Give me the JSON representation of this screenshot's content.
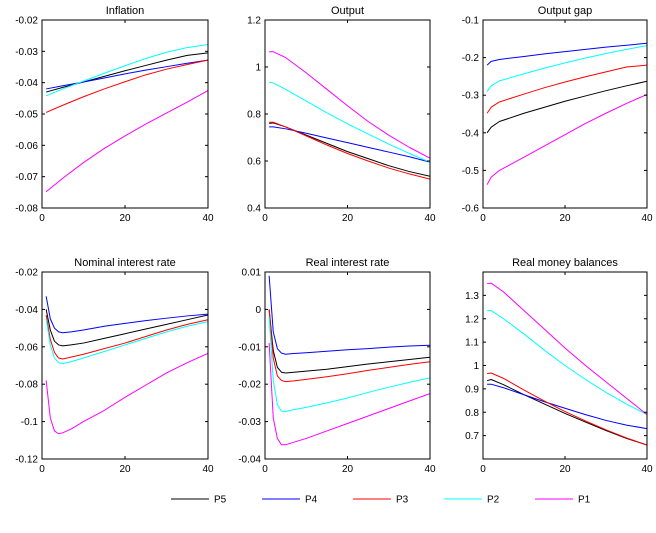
{
  "chart_data": [
    {
      "type": "line",
      "title": "Inflation",
      "xlim": [
        0,
        40
      ],
      "ylim": [
        -0.08,
        -0.02
      ],
      "xticks": [
        0,
        20,
        40
      ],
      "yticks": [
        -0.08,
        -0.07,
        -0.06,
        -0.05,
        -0.04,
        -0.03,
        -0.02
      ],
      "xtick_labels": [
        "0",
        "20",
        "40"
      ],
      "ytick_labels": [
        "-0.08",
        "-0.07",
        "-0.06",
        "-0.05",
        "-0.04",
        "-0.03",
        "-0.02"
      ],
      "x": [
        1,
        5,
        10,
        15,
        20,
        25,
        30,
        35,
        40
      ],
      "series": [
        {
          "name": "P5",
          "color": "#000000",
          "values": [
            -0.043,
            -0.0415,
            -0.0398,
            -0.038,
            -0.0362,
            -0.0345,
            -0.0328,
            -0.0313,
            -0.0305
          ]
        },
        {
          "name": "P4",
          "color": "#0000ff",
          "values": [
            -0.042,
            -0.041,
            -0.0398,
            -0.0385,
            -0.0372,
            -0.036,
            -0.0349,
            -0.0338,
            -0.0328
          ]
        },
        {
          "name": "P3",
          "color": "#ff0000",
          "values": [
            -0.0495,
            -0.0472,
            -0.0445,
            -0.042,
            -0.0397,
            -0.0375,
            -0.0357,
            -0.0342,
            -0.0328
          ]
        },
        {
          "name": "P2",
          "color": "#00ffff",
          "values": [
            -0.0442,
            -0.042,
            -0.0395,
            -0.037,
            -0.0346,
            -0.0323,
            -0.0303,
            -0.0288,
            -0.0278
          ]
        },
        {
          "name": "P1",
          "color": "#ff00ff",
          "values": [
            -0.0748,
            -0.0705,
            -0.0655,
            -0.061,
            -0.057,
            -0.0532,
            -0.0497,
            -0.0462,
            -0.0425
          ]
        }
      ]
    },
    {
      "type": "line",
      "title": "Output",
      "xlim": [
        0,
        40
      ],
      "ylim": [
        0.4,
        1.2
      ],
      "xticks": [
        0,
        20,
        40
      ],
      "yticks": [
        0.4,
        0.6,
        0.8,
        1.0,
        1.2
      ],
      "xtick_labels": [
        "0",
        "20",
        "40"
      ],
      "ytick_labels": [
        "0.4",
        "0.6",
        "0.8",
        "1",
        "1.2"
      ],
      "x": [
        1,
        2,
        5,
        10,
        15,
        20,
        25,
        30,
        35,
        40
      ],
      "series": [
        {
          "name": "P5",
          "color": "#000000",
          "values": [
            0.76,
            0.762,
            0.745,
            0.71,
            0.675,
            0.64,
            0.61,
            0.58,
            0.555,
            0.535
          ]
        },
        {
          "name": "P4",
          "color": "#0000ff",
          "values": [
            0.745,
            0.745,
            0.737,
            0.718,
            0.698,
            0.678,
            0.658,
            0.638,
            0.618,
            0.595
          ]
        },
        {
          "name": "P3",
          "color": "#ff0000",
          "values": [
            0.765,
            0.765,
            0.745,
            0.707,
            0.668,
            0.632,
            0.6,
            0.57,
            0.545,
            0.523
          ]
        },
        {
          "name": "P2",
          "color": "#00ffff",
          "values": [
            0.935,
            0.932,
            0.905,
            0.855,
            0.805,
            0.758,
            0.715,
            0.672,
            0.632,
            0.595
          ]
        },
        {
          "name": "P1",
          "color": "#ff00ff",
          "values": [
            1.065,
            1.065,
            1.04,
            0.975,
            0.905,
            0.835,
            0.768,
            0.71,
            0.658,
            0.612
          ]
        }
      ]
    },
    {
      "type": "line",
      "title": "Output gap",
      "xlim": [
        0,
        40
      ],
      "ylim": [
        -0.6,
        -0.1
      ],
      "xticks": [
        0,
        20,
        40
      ],
      "yticks": [
        -0.6,
        -0.5,
        -0.4,
        -0.3,
        -0.2,
        -0.1
      ],
      "xtick_labels": [
        "0",
        "20",
        "40"
      ],
      "ytick_labels": [
        "-0.6",
        "-0.5",
        "-0.4",
        "-0.3",
        "-0.2",
        "-0.1"
      ],
      "x": [
        1,
        2,
        4,
        10,
        15,
        20,
        25,
        30,
        35,
        40
      ],
      "series": [
        {
          "name": "P5",
          "color": "#000000",
          "values": [
            -0.4,
            -0.385,
            -0.37,
            -0.348,
            -0.332,
            -0.316,
            -0.302,
            -0.288,
            -0.275,
            -0.263
          ]
        },
        {
          "name": "P4",
          "color": "#0000ff",
          "values": [
            -0.22,
            -0.21,
            -0.205,
            -0.197,
            -0.19,
            -0.184,
            -0.178,
            -0.172,
            -0.167,
            -0.162
          ]
        },
        {
          "name": "P3",
          "color": "#ff0000",
          "values": [
            -0.348,
            -0.332,
            -0.318,
            -0.297,
            -0.28,
            -0.265,
            -0.251,
            -0.238,
            -0.225,
            -0.22
          ]
        },
        {
          "name": "P2",
          "color": "#00ffff",
          "values": [
            -0.29,
            -0.275,
            -0.262,
            -0.243,
            -0.228,
            -0.214,
            -0.201,
            -0.189,
            -0.178,
            -0.168
          ]
        },
        {
          "name": "P1",
          "color": "#ff00ff",
          "values": [
            -0.538,
            -0.518,
            -0.5,
            -0.465,
            -0.435,
            -0.405,
            -0.375,
            -0.348,
            -0.322,
            -0.298
          ]
        }
      ]
    },
    {
      "type": "line",
      "title": "Nominal interest rate",
      "xlim": [
        0,
        40
      ],
      "ylim": [
        -0.12,
        -0.02
      ],
      "xticks": [
        0,
        20,
        40
      ],
      "yticks": [
        -0.12,
        -0.1,
        -0.08,
        -0.06,
        -0.04,
        -0.02
      ],
      "xtick_labels": [
        "0",
        "20",
        "40"
      ],
      "ytick_labels": [
        "-0.12",
        "-0.1",
        "-0.08",
        "-0.06",
        "-0.04",
        "-0.02"
      ],
      "x": [
        1,
        2,
        3,
        4,
        5,
        7,
        10,
        15,
        20,
        25,
        30,
        35,
        40
      ],
      "series": [
        {
          "name": "P5",
          "color": "#000000",
          "values": [
            -0.04,
            -0.051,
            -0.057,
            -0.059,
            -0.0595,
            -0.059,
            -0.058,
            -0.0555,
            -0.053,
            -0.0505,
            -0.048,
            -0.0455,
            -0.043
          ]
        },
        {
          "name": "P4",
          "color": "#0000ff",
          "values": [
            -0.033,
            -0.045,
            -0.05,
            -0.052,
            -0.0525,
            -0.052,
            -0.051,
            -0.049,
            -0.0475,
            -0.046,
            -0.0447,
            -0.0435,
            -0.0425
          ]
        },
        {
          "name": "P3",
          "color": "#ff0000",
          "values": [
            -0.043,
            -0.056,
            -0.063,
            -0.066,
            -0.0665,
            -0.0655,
            -0.064,
            -0.061,
            -0.058,
            -0.0545,
            -0.051,
            -0.048,
            -0.0455
          ]
        },
        {
          "name": "P2",
          "color": "#00ffff",
          "values": [
            -0.045,
            -0.059,
            -0.066,
            -0.0685,
            -0.069,
            -0.068,
            -0.066,
            -0.0625,
            -0.059,
            -0.0555,
            -0.052,
            -0.049,
            -0.0465
          ]
        },
        {
          "name": "P1",
          "color": "#ff00ff",
          "values": [
            -0.078,
            -0.098,
            -0.105,
            -0.1065,
            -0.106,
            -0.104,
            -0.1,
            -0.094,
            -0.087,
            -0.0805,
            -0.074,
            -0.0685,
            -0.0635
          ]
        }
      ]
    },
    {
      "type": "line",
      "title": "Real interest rate",
      "xlim": [
        0,
        40
      ],
      "ylim": [
        -0.04,
        0.01
      ],
      "xticks": [
        0,
        20,
        40
      ],
      "yticks": [
        -0.04,
        -0.03,
        -0.02,
        -0.01,
        0,
        0.01
      ],
      "xtick_labels": [
        "0",
        "20",
        "40"
      ],
      "ytick_labels": [
        "-0.04",
        "-0.03",
        "-0.02",
        "-0.01",
        "0",
        "0.01"
      ],
      "x": [
        1,
        2,
        3,
        4,
        5,
        7,
        10,
        15,
        20,
        25,
        30,
        35,
        40
      ],
      "series": [
        {
          "name": "P5",
          "color": "#000000",
          "values": [
            0.0,
            -0.011,
            -0.0155,
            -0.0168,
            -0.017,
            -0.0168,
            -0.0165,
            -0.016,
            -0.0153,
            -0.0146,
            -0.014,
            -0.0134,
            -0.0128
          ]
        },
        {
          "name": "P4",
          "color": "#0000ff",
          "values": [
            0.009,
            -0.006,
            -0.0105,
            -0.0117,
            -0.012,
            -0.0118,
            -0.0116,
            -0.0112,
            -0.0108,
            -0.0105,
            -0.0101,
            -0.0098,
            -0.0096
          ]
        },
        {
          "name": "P3",
          "color": "#ff0000",
          "values": [
            0.0,
            -0.013,
            -0.0178,
            -0.019,
            -0.0193,
            -0.0191,
            -0.0187,
            -0.018,
            -0.0172,
            -0.0163,
            -0.0155,
            -0.0147,
            -0.014
          ]
        },
        {
          "name": "P2",
          "color": "#00ffff",
          "values": [
            -0.002,
            -0.019,
            -0.0255,
            -0.0272,
            -0.0273,
            -0.0268,
            -0.0262,
            -0.025,
            -0.0237,
            -0.0222,
            -0.0208,
            -0.0195,
            -0.0183
          ]
        },
        {
          "name": "P1",
          "color": "#ff00ff",
          "values": [
            -0.009,
            -0.029,
            -0.0345,
            -0.0362,
            -0.0362,
            -0.0355,
            -0.0345,
            -0.0325,
            -0.0305,
            -0.0285,
            -0.0265,
            -0.0245,
            -0.0225
          ]
        }
      ]
    },
    {
      "type": "line",
      "title": "Real money balances",
      "xlim": [
        0,
        40
      ],
      "ylim": [
        0.6,
        1.4
      ],
      "xticks": [
        0,
        20,
        40
      ],
      "yticks": [
        0.7,
        0.8,
        0.9,
        1.0,
        1.1,
        1.2,
        1.3
      ],
      "xtick_labels": [
        "0",
        "20",
        "40"
      ],
      "ytick_labels": [
        "0.7",
        "0.8",
        "0.9",
        "1",
        "1.1",
        "1.2",
        "1.3"
      ],
      "x": [
        1,
        2,
        5,
        10,
        15,
        20,
        25,
        30,
        35,
        40
      ],
      "series": [
        {
          "name": "P5",
          "color": "#000000",
          "values": [
            0.935,
            0.94,
            0.918,
            0.875,
            0.835,
            0.795,
            0.758,
            0.722,
            0.688,
            0.66
          ]
        },
        {
          "name": "P4",
          "color": "#0000ff",
          "values": [
            0.92,
            0.92,
            0.905,
            0.875,
            0.845,
            0.817,
            0.79,
            0.765,
            0.745,
            0.73
          ]
        },
        {
          "name": "P3",
          "color": "#ff0000",
          "values": [
            0.965,
            0.968,
            0.945,
            0.895,
            0.848,
            0.803,
            0.763,
            0.725,
            0.69,
            0.66
          ]
        },
        {
          "name": "P2",
          "color": "#00ffff",
          "values": [
            1.235,
            1.235,
            1.2,
            1.135,
            1.065,
            1.0,
            0.94,
            0.885,
            0.835,
            0.79
          ]
        },
        {
          "name": "P1",
          "color": "#ff00ff",
          "values": [
            1.35,
            1.352,
            1.315,
            1.235,
            1.155,
            1.075,
            1.0,
            0.93,
            0.86,
            0.79
          ]
        }
      ]
    }
  ],
  "legend": {
    "placement": "bottom-center",
    "entries": [
      {
        "name": "P5",
        "color": "#000000"
      },
      {
        "name": "P4",
        "color": "#0000ff"
      },
      {
        "name": "P3",
        "color": "#ff0000"
      },
      {
        "name": "P2",
        "color": "#00ffff"
      },
      {
        "name": "P1",
        "color": "#ff00ff"
      }
    ]
  }
}
